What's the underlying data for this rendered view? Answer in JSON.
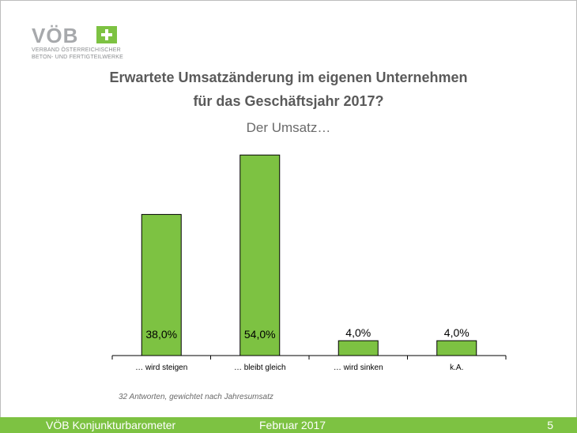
{
  "logo": {
    "word": "VÖB",
    "line1": "VERBAND ÖSTERREICHISCHER",
    "line2": "BETON- UND FERTIGTEILWERKE"
  },
  "header": {
    "title_line1": "Erwartete Umsatzänderung im eigenen Unternehmen",
    "title_line2": "für das Geschäftsjahr 2017?",
    "subtitle": "Der Umsatz…"
  },
  "chart_data": {
    "type": "bar",
    "categories": [
      "… wird steigen",
      "… bleibt gleich",
      "… wird sinken",
      "k.A."
    ],
    "values": [
      38.0,
      54.0,
      4.0,
      4.0
    ],
    "value_labels": [
      "38,0%",
      "54,0%",
      "4,0%",
      "4,0%"
    ],
    "ylim": [
      0,
      60
    ],
    "grid": false,
    "bar_color": "#7dc242"
  },
  "note": "32 Antworten, gewichtet nach Jahresumsatz",
  "footer": {
    "left": "VÖB Konjunkturbarometer",
    "middle": "Februar 2017",
    "page": "5"
  },
  "colors": {
    "accent": "#7dc242",
    "title": "#5a5a5a"
  }
}
